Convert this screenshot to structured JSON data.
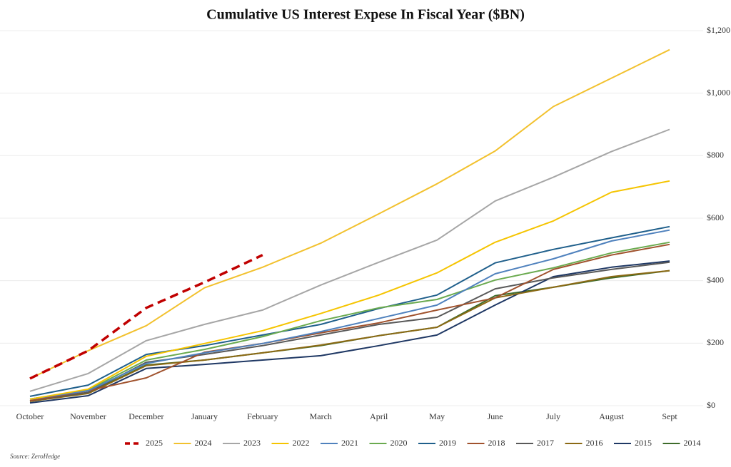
{
  "chart_data": {
    "type": "line",
    "title": "Cumulative US Interest Expese In Fiscal Year ($BN)",
    "source": "Source: ZeroHedge",
    "categories": [
      "October",
      "November",
      "December",
      "January",
      "February",
      "March",
      "April",
      "May",
      "June",
      "July",
      "August",
      "Sept"
    ],
    "ylim": [
      0,
      1200
    ],
    "yticks": [
      {
        "value": 0,
        "label": "$0"
      },
      {
        "value": 200,
        "label": "$200"
      },
      {
        "value": 400,
        "label": "$400"
      },
      {
        "value": 600,
        "label": "$600"
      },
      {
        "value": 800,
        "label": "$800"
      },
      {
        "value": 1000,
        "label": "$1,000"
      },
      {
        "value": 1200,
        "label": "$1,200"
      }
    ],
    "grid": true,
    "legend": "bottom",
    "series": [
      {
        "name": "2025",
        "color": "#c00000",
        "dash": true,
        "values": [
          87,
          176,
          313,
          395,
          482,
          null,
          null,
          null,
          null,
          null,
          null,
          null
        ]
      },
      {
        "name": "2024",
        "color": "#f2c12e",
        "values": [
          87,
          176,
          256,
          377,
          443,
          520,
          614,
          710,
          815,
          957,
          1048,
          1139
        ]
      },
      {
        "name": "2023",
        "color": "#a6a6a6",
        "values": [
          46,
          103,
          208,
          260,
          306,
          386,
          459,
          530,
          655,
          731,
          813,
          884
        ]
      },
      {
        "name": "2022",
        "color": "#f5c400",
        "values": [
          21,
          53,
          158,
          199,
          240,
          295,
          354,
          425,
          523,
          591,
          683,
          719
        ]
      },
      {
        "name": "2021",
        "color": "#4f81bd",
        "values": [
          21,
          48,
          135,
          169,
          199,
          237,
          279,
          322,
          422,
          470,
          527,
          562
        ]
      },
      {
        "name": "2020",
        "color": "#6aaa4f",
        "values": [
          21,
          50,
          146,
          180,
          221,
          272,
          313,
          340,
          402,
          441,
          489,
          523
        ]
      },
      {
        "name": "2019",
        "color": "#1f5f8b",
        "values": [
          30,
          66,
          164,
          192,
          226,
          260,
          311,
          354,
          457,
          500,
          537,
          573
        ]
      },
      {
        "name": "2018",
        "color": "#a0522d",
        "values": [
          16,
          48,
          89,
          171,
          199,
          233,
          265,
          306,
          345,
          436,
          482,
          516
        ]
      },
      {
        "name": "2017",
        "color": "#595959",
        "values": [
          16,
          43,
          139,
          164,
          192,
          226,
          260,
          283,
          374,
          409,
          436,
          459
        ]
      },
      {
        "name": "2016",
        "color": "#8b6914",
        "values": [
          14,
          39,
          128,
          146,
          169,
          194,
          224,
          251,
          345,
          379,
          413,
          432
        ]
      },
      {
        "name": "2015",
        "color": "#1f3864",
        "values": [
          9,
          32,
          119,
          132,
          146,
          160,
          192,
          226,
          322,
          413,
          443,
          463
        ]
      },
      {
        "name": "2014",
        "color": "#3d6b2a",
        "values": [
          14,
          41,
          130,
          146,
          169,
          192,
          224,
          251,
          352,
          379,
          409,
          432
        ]
      }
    ]
  }
}
